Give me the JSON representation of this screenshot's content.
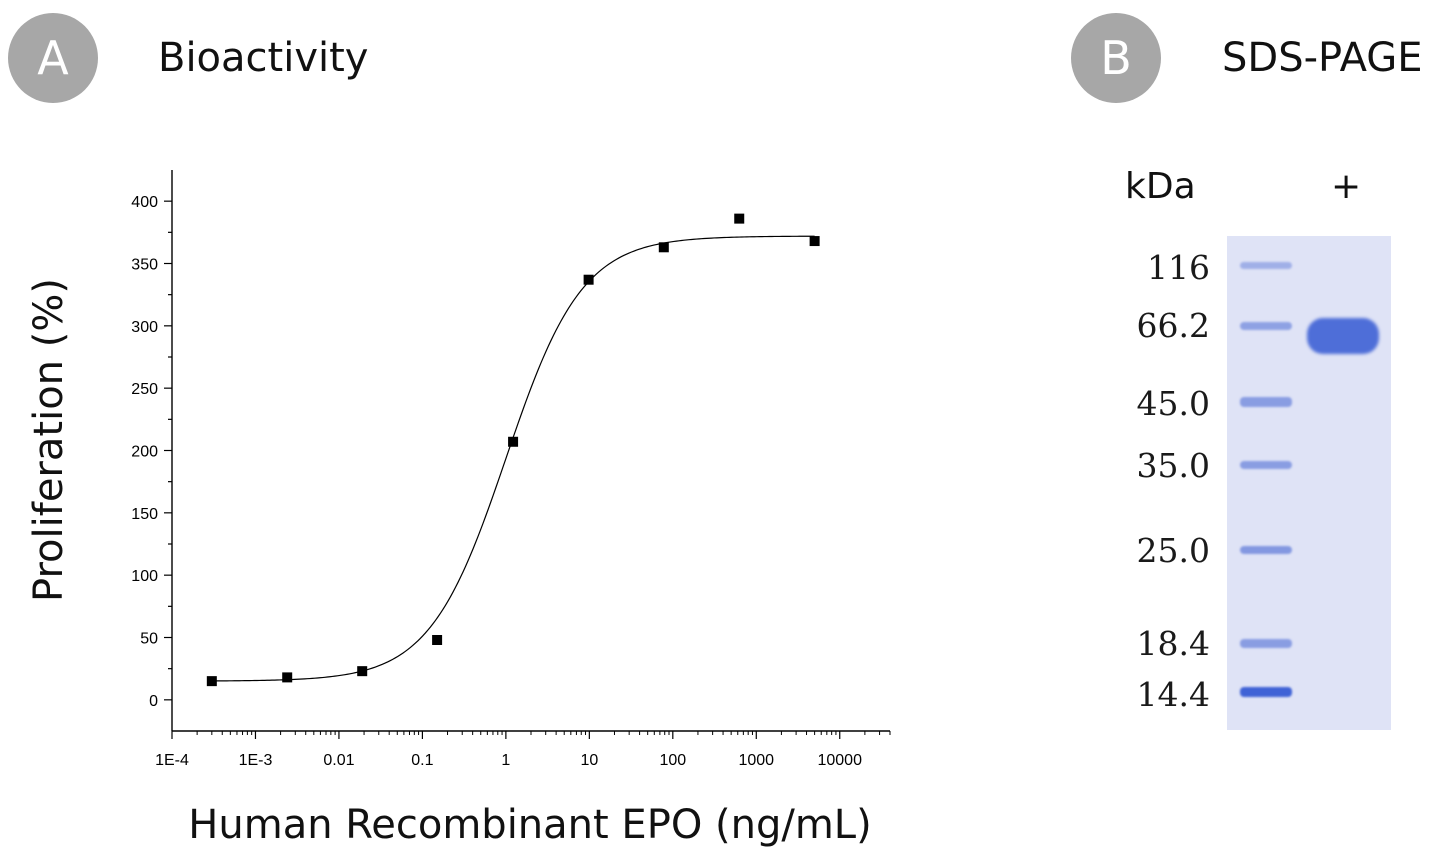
{
  "panel_a": {
    "badge": "A",
    "title": "Bioactivity",
    "badge_color": "#a7a7a7"
  },
  "panel_b": {
    "badge": "B",
    "title": "SDS-PAGE",
    "badge_color": "#a7a7a7"
  },
  "chart_data": {
    "type": "scatter",
    "title": "",
    "xlabel": "Human Recombinant EPO (ng/mL)",
    "ylabel": "Proliferation (%)",
    "x_scale": "log",
    "xlim": [
      0.0001,
      40000
    ],
    "ylim": [
      -25,
      425
    ],
    "x_ticks": [
      "1E-4",
      "1E-3",
      "0.01",
      "0.1",
      "1",
      "10",
      "100",
      "1000",
      "10000"
    ],
    "y_ticks": [
      "0",
      "50",
      "100",
      "150",
      "200",
      "250",
      "300",
      "350",
      "400"
    ],
    "series": [
      {
        "marker": "square",
        "x": [
          0.0003,
          0.0024,
          0.019,
          0.15,
          1.22,
          9.8,
          78,
          625,
          5000
        ],
        "y": [
          15,
          18,
          23,
          48,
          207,
          337,
          363,
          386,
          368
        ]
      }
    ],
    "fit": {
      "type": "sigmoid",
      "bottom": 15,
      "top": 372,
      "ec50": 1.0,
      "hill": 0.95
    },
    "grid": false,
    "legend": "none"
  },
  "gel": {
    "unit_label": "kDa",
    "lane_label": "+",
    "markers": [
      "116",
      "66.2",
      "45.0",
      "35.0",
      "25.0",
      "18.4",
      "14.4"
    ],
    "gel_color": "#dfe3f6",
    "band_color": "#5b76d9"
  }
}
